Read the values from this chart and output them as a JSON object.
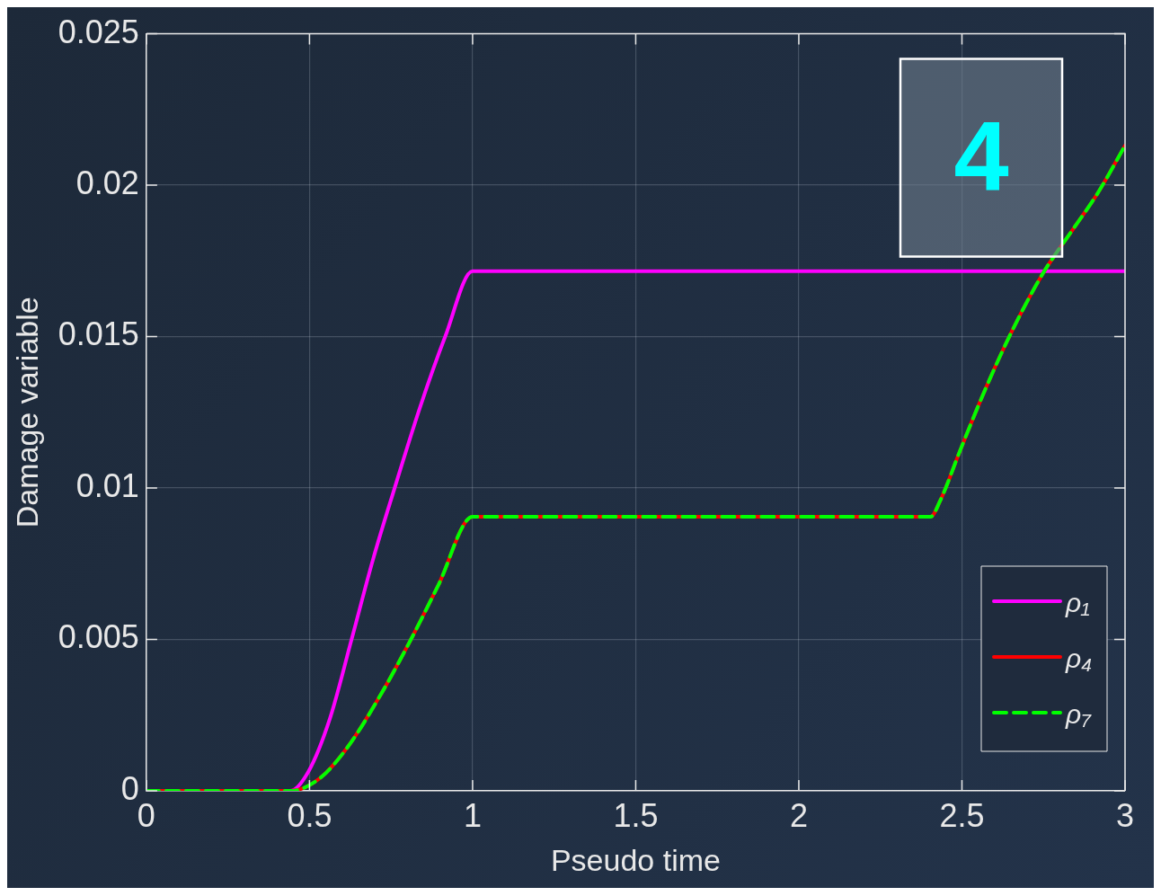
{
  "chart_data": {
    "type": "line",
    "xlabel": "Pseudo time",
    "ylabel": "Damage variable",
    "xlim": [
      0,
      3
    ],
    "ylim": [
      0,
      0.025
    ],
    "xticks": [
      0,
      0.5,
      1,
      1.5,
      2,
      2.5,
      3
    ],
    "yticks": [
      0,
      0.005,
      0.01,
      0.015,
      0.02,
      0.025
    ],
    "grid": true,
    "legend": "bottom right",
    "marker": "none",
    "annotations": [
      "4"
    ],
    "series": [
      {
        "name": "ρ₁",
        "color": "#ff00ff",
        "line_style": "solid",
        "x": [
          0,
          0.441,
          0.497,
          0.563,
          0.629,
          0.695,
          0.761,
          0.839,
          0.916,
          1,
          3
        ],
        "values": [
          0,
          0,
          0.00064,
          0.0024,
          0.005,
          0.00765,
          0.01,
          0.01267,
          0.015,
          0.01716,
          0.01716
        ]
      },
      {
        "name": "ρ₄",
        "color": "#ff0000",
        "line_style": "solid",
        "x": [
          0,
          0.441,
          0.53,
          0.618,
          0.717,
          0.811,
          0.894,
          1,
          2.404,
          2.432,
          2.497,
          2.572,
          2.656,
          2.749,
          2.842,
          2.917,
          3
        ],
        "values": [
          0,
          0,
          0.0004,
          0.00146,
          0.00315,
          0.005,
          0.00677,
          0.00905,
          0.00905,
          0.00955,
          0.01131,
          0.01327,
          0.01524,
          0.0171,
          0.01857,
          0.01975,
          0.02131
        ]
      },
      {
        "name": "ρ₇",
        "color": "#00ff00",
        "line_style": "dashed",
        "x": [
          0,
          0.441,
          0.53,
          0.618,
          0.717,
          0.811,
          0.894,
          1,
          2.404,
          2.432,
          2.497,
          2.572,
          2.656,
          2.749,
          2.842,
          2.917,
          3
        ],
        "values": [
          0,
          0,
          0.0004,
          0.00146,
          0.00315,
          0.005,
          0.00677,
          0.00905,
          0.00905,
          0.00955,
          0.01131,
          0.01327,
          0.01524,
          0.0171,
          0.01857,
          0.01975,
          0.02131
        ]
      }
    ]
  }
}
